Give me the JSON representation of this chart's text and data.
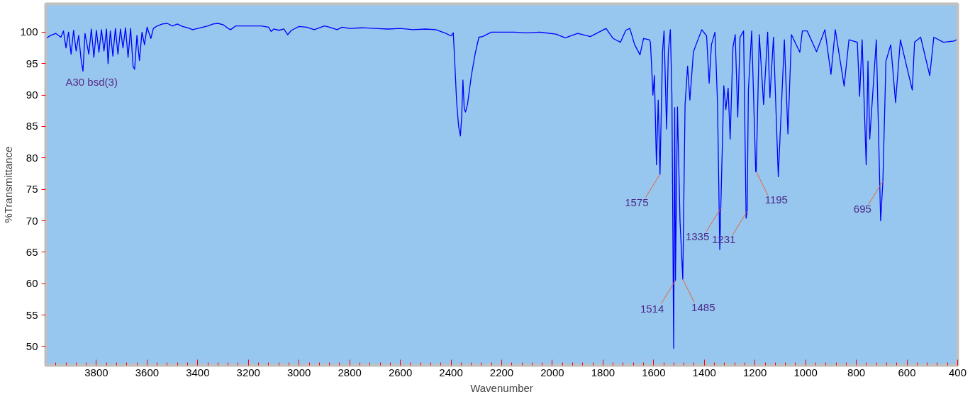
{
  "chart_data": {
    "type": "line",
    "xlabel": "Wavenumber",
    "ylabel": "%Transmittance",
    "xlim": [
      4000,
      400
    ],
    "ylim": [
      47,
      104.5
    ],
    "xticks": [
      3800,
      3600,
      3400,
      3200,
      3000,
      2800,
      2600,
      2400,
      2200,
      2000,
      1800,
      1600,
      1400,
      1200,
      1000,
      800,
      600,
      400
    ],
    "yticks": [
      50,
      55,
      60,
      65,
      70,
      75,
      80,
      85,
      90,
      95,
      100
    ],
    "grid": false,
    "marker": "none",
    "line_style": "solid",
    "annotations": [
      "A30 bsd(3)",
      {
        "text": "1575",
        "x": 1575,
        "y": 77.4
      },
      {
        "text": "1514",
        "x": 1514,
        "y": 60.5
      },
      {
        "text": "1485",
        "x": 1485,
        "y": 60.7
      },
      {
        "text": "1335",
        "x": 1335,
        "y": 72.0
      },
      {
        "text": "1231",
        "x": 1231,
        "y": 71.5
      },
      {
        "text": "1195",
        "x": 1195,
        "y": 77.8
      },
      {
        "text": "695",
        "x": 695,
        "y": 76.3
      }
    ],
    "series": [
      {
        "color": "#0000ff",
        "x": [
          4000,
          3980,
          3960,
          3940,
          3930,
          3920,
          3910,
          3900,
          3890,
          3880,
          3870,
          3860,
          3853,
          3845,
          3830,
          3820,
          3810,
          3800,
          3790,
          3780,
          3770,
          3760,
          3754,
          3745,
          3735,
          3725,
          3715,
          3705,
          3695,
          3685,
          3675,
          3665,
          3655,
          3649,
          3640,
          3630,
          3620,
          3610,
          3600,
          3585,
          3575,
          3560,
          3540,
          3520,
          3500,
          3480,
          3460,
          3440,
          3420,
          3400,
          3380,
          3360,
          3340,
          3320,
          3300,
          3280,
          3270,
          3250,
          3200,
          3150,
          3120,
          3110,
          3100,
          3080,
          3060,
          3045,
          3030,
          3000,
          2970,
          2940,
          2900,
          2880,
          2850,
          2830,
          2800,
          2750,
          2700,
          2650,
          2600,
          2550,
          2500,
          2460,
          2420,
          2400,
          2391,
          2385,
          2378,
          2370,
          2363,
          2358,
          2353,
          2348,
          2343,
          2335,
          2320,
          2305,
          2290,
          2275,
          2241,
          2200,
          2150,
          2100,
          2050,
          1986,
          1949,
          1900,
          1850,
          1788,
          1760,
          1731,
          1710,
          1694,
          1675,
          1654,
          1640,
          1617,
          1613,
          1608,
          1603,
          1597,
          1589,
          1582,
          1575,
          1565,
          1559,
          1549,
          1542,
          1534,
          1528,
          1521,
          1517,
          1514,
          1506,
          1496,
          1485,
          1476,
          1466,
          1457,
          1443,
          1429,
          1410,
          1391,
          1381,
          1372,
          1358,
          1348,
          1339,
          1335,
          1323,
          1315,
          1306,
          1298,
          1287,
          1278,
          1268,
          1259,
          1245,
          1235,
          1231,
          1226,
          1213,
          1197,
          1195,
          1183,
          1166,
          1150,
          1141,
          1127,
          1108,
          1084,
          1070,
          1056,
          1023,
          1013,
          994,
          957,
          924,
          900,
          883,
          848,
          829,
          796,
          787,
          777,
          761,
          754,
          747,
          721,
          704,
          695,
          683,
          664,
          645,
          626,
          579,
          570,
          546,
          510,
          494,
          456,
          414,
          405
        ],
        "values": [
          99.0,
          99.5,
          99.8,
          99.2,
          100.2,
          97.5,
          100.0,
          96.5,
          100.3,
          97.0,
          99.5,
          95.5,
          93.8,
          99.8,
          96.5,
          100.5,
          96.0,
          100.3,
          96.8,
          100.4,
          97.0,
          100.5,
          95.0,
          100.2,
          96.2,
          100.6,
          96.5,
          100.5,
          97.5,
          100.7,
          96.0,
          100.6,
          94.5,
          94.1,
          99.5,
          95.5,
          100.0,
          98.0,
          100.8,
          99.0,
          100.6,
          101.0,
          101.3,
          101.4,
          101.0,
          101.3,
          100.9,
          100.7,
          100.4,
          100.6,
          100.8,
          101.0,
          101.3,
          101.4,
          101.2,
          100.6,
          100.4,
          101.0,
          101.0,
          101.0,
          100.8,
          100.1,
          100.5,
          100.3,
          100.5,
          99.6,
          100.3,
          100.9,
          100.8,
          100.4,
          101.0,
          100.8,
          100.4,
          100.8,
          100.6,
          100.7,
          100.6,
          100.5,
          100.6,
          100.4,
          100.5,
          100.4,
          99.8,
          99.4,
          99.9,
          95.0,
          89.0,
          85.0,
          83.5,
          86.5,
          92.4,
          88.0,
          87.3,
          88.5,
          93.0,
          96.5,
          99.2,
          99.3,
          100.0,
          100.0,
          100.0,
          99.9,
          100.0,
          99.7,
          99.1,
          99.8,
          99.3,
          100.6,
          99.0,
          98.4,
          100.3,
          100.6,
          98.0,
          96.4,
          99.0,
          98.8,
          98.4,
          94.6,
          90.0,
          93.1,
          78.9,
          89.2,
          77.4,
          96.9,
          100.2,
          84.6,
          96.9,
          100.4,
          90.0,
          49.7,
          88.0,
          60.5,
          88.1,
          70.0,
          60.7,
          88.5,
          94.6,
          89.2,
          96.9,
          98.4,
          100.4,
          99.4,
          91.9,
          98.0,
          100.0,
          88.8,
          65.4,
          72.0,
          91.5,
          87.7,
          91.1,
          83.0,
          97.6,
          99.6,
          86.5,
          99.2,
          100.2,
          70.4,
          71.5,
          90.8,
          100.2,
          77.8,
          77.8,
          99.6,
          88.5,
          100.0,
          89.6,
          99.2,
          77.0,
          98.8,
          83.8,
          99.6,
          96.8,
          100.2,
          100.2,
          96.9,
          100.4,
          93.3,
          100.4,
          91.4,
          98.8,
          98.4,
          89.8,
          98.8,
          78.9,
          95.4,
          83.0,
          98.8,
          70.0,
          76.3,
          95.4,
          98.0,
          88.8,
          98.8,
          90.8,
          98.4,
          99.2,
          93.1,
          99.2,
          98.4,
          98.6,
          98.8
        ]
      }
    ]
  }
}
